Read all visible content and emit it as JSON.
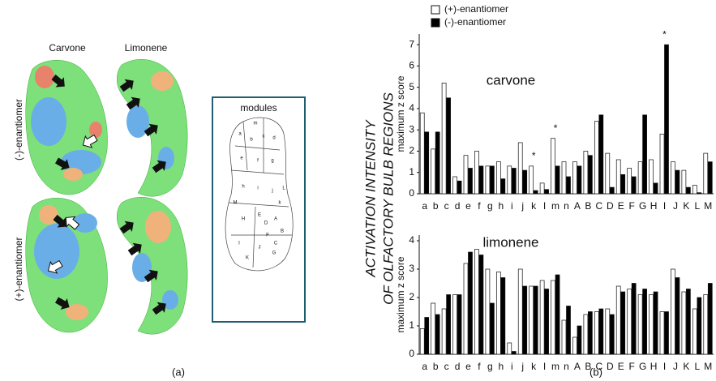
{
  "panel_a": {
    "columns": [
      "Carvone",
      "Limonene"
    ],
    "rows": [
      "(-)-enantiomer",
      "(+)-enantiomer"
    ],
    "modules_title": "modules",
    "module_letters": [
      "m",
      "a",
      "b",
      "c",
      "d",
      "e",
      "f",
      "g",
      "h",
      "i",
      "j",
      "k",
      "A",
      "B",
      "C",
      "D",
      "E",
      "F",
      "G",
      "H",
      "I",
      "J",
      "K",
      "L",
      "M"
    ],
    "caption": "(a)"
  },
  "panel_b": {
    "figure_ylabel": [
      "ACTIVATION INTENSITY",
      "OF OLFACTORY BULB REGIONS"
    ],
    "caption": "(b)"
  },
  "chart_data": [
    {
      "type": "bar",
      "title": "carvone",
      "y_label": "maximum z score",
      "categories": [
        "a",
        "b",
        "c",
        "d",
        "e",
        "f",
        "g",
        "h",
        "i",
        "j",
        "k",
        "l",
        "m",
        "n",
        "A",
        "B",
        "C",
        "D",
        "E",
        "F",
        "G",
        "H",
        "I",
        "J",
        "K",
        "L",
        "M"
      ],
      "series": [
        {
          "name": "(+)-enantiomer",
          "color": "#ffffff",
          "values": [
            3.8,
            2.1,
            5.2,
            0.8,
            1.8,
            2.0,
            1.3,
            1.5,
            1.3,
            2.4,
            1.3,
            0.5,
            2.6,
            1.5,
            1.5,
            2.0,
            3.4,
            1.9,
            1.6,
            1.2,
            1.5,
            1.6,
            2.8,
            1.5,
            1.1,
            0.4,
            1.9
          ]
        },
        {
          "name": "(-)-enantiomer",
          "color": "#000000",
          "values": [
            2.9,
            2.9,
            4.5,
            0.6,
            1.2,
            1.3,
            1.3,
            0.7,
            1.2,
            1.1,
            0.15,
            0.2,
            1.3,
            0.8,
            1.3,
            1.8,
            3.7,
            0.3,
            0.9,
            0.8,
            3.7,
            0.5,
            7.0,
            1.1,
            0.3,
            0.05,
            1.5
          ]
        }
      ],
      "annotations": [
        {
          "label": "*",
          "at": "k"
        },
        {
          "label": "*",
          "at": "m"
        },
        {
          "label": "*",
          "at": "I"
        }
      ],
      "ylim": [
        0,
        7.5
      ],
      "yticks": [
        0,
        1,
        2,
        3,
        4,
        5,
        6,
        7
      ]
    },
    {
      "type": "bar",
      "title": "limonene",
      "y_label": "maximum z score",
      "categories": [
        "a",
        "b",
        "c",
        "d",
        "e",
        "f",
        "g",
        "h",
        "i",
        "j",
        "k",
        "l",
        "m",
        "n",
        "A",
        "B",
        "C",
        "D",
        "E",
        "F",
        "G",
        "H",
        "I",
        "J",
        "K",
        "L",
        "M"
      ],
      "series": [
        {
          "color": "#ffffff",
          "values": [
            0.9,
            1.8,
            1.6,
            2.1,
            3.2,
            3.7,
            3.0,
            2.9,
            0.4,
            3.0,
            2.4,
            2.6,
            2.6,
            1.2,
            0.6,
            1.4,
            1.5,
            1.6,
            2.4,
            2.3,
            2.1,
            2.1,
            1.5,
            3.0,
            2.2,
            1.6,
            2.1
          ]
        },
        {
          "color": "#000000",
          "values": [
            1.3,
            1.4,
            2.1,
            2.1,
            3.6,
            3.5,
            1.8,
            2.7,
            0.1,
            2.4,
            2.4,
            2.3,
            2.8,
            1.7,
            1.0,
            1.5,
            1.6,
            1.4,
            2.2,
            2.5,
            2.3,
            2.2,
            1.5,
            2.7,
            2.3,
            2.0,
            2.5
          ]
        }
      ],
      "ylim": [
        0,
        4.2
      ],
      "yticks": [
        0,
        1,
        2,
        3,
        4
      ]
    }
  ]
}
